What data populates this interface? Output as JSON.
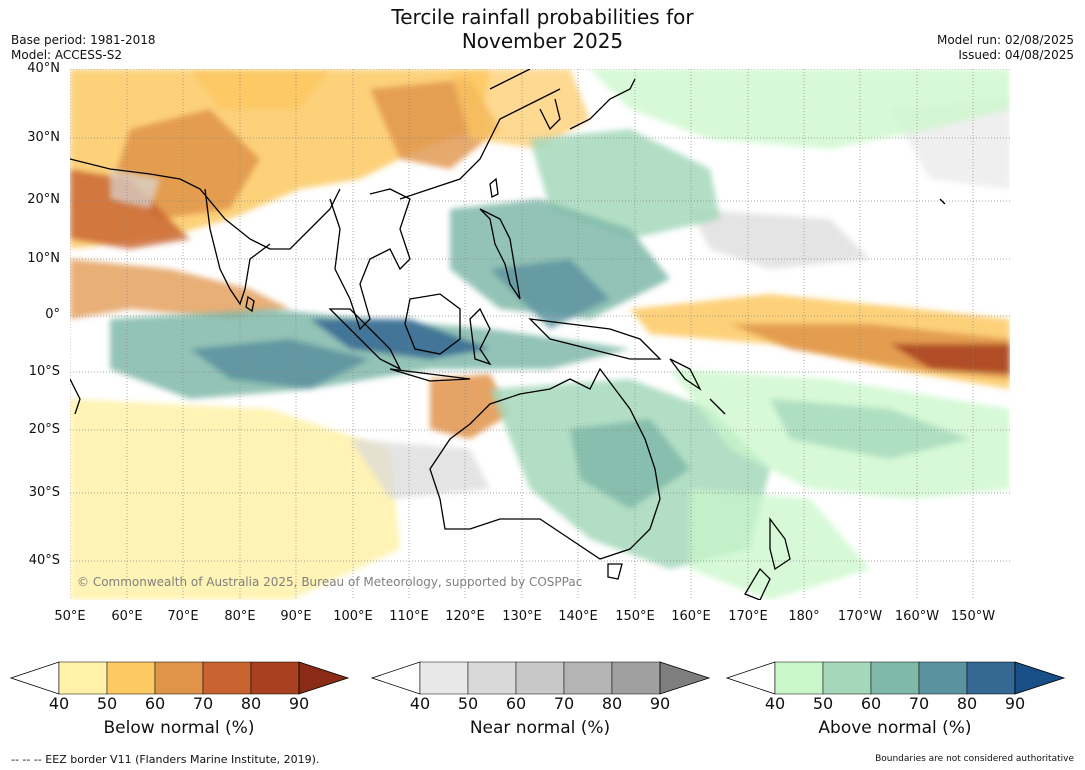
{
  "title": {
    "line1": "Tercile rainfall probabilities for",
    "line2": "November 2025"
  },
  "meta_left": {
    "base_period": "Base period: 1981-2018",
    "model": "Model: ACCESS-S2"
  },
  "meta_right": {
    "model_run": "Model run: 02/08/2025",
    "issued": "Issued: 04/08/2025"
  },
  "map": {
    "lat_labels": [
      "40°N",
      "30°N",
      "20°N",
      "10°N",
      "0°",
      "10°S",
      "20°S",
      "30°S",
      "40°S"
    ],
    "lon_labels": [
      "50°E",
      "60°E",
      "70°E",
      "80°E",
      "90°E",
      "100°E",
      "110°E",
      "120°E",
      "130°E",
      "140°E",
      "150°E",
      "160°E",
      "170°E",
      "180°",
      "170°W",
      "160°W",
      "150°W"
    ],
    "copyright": "© Commonwealth of Australia 2025, Bureau of Meteorology, supported by COSPPac",
    "grid": true
  },
  "colorbars": [
    {
      "label": "Below normal (%)",
      "ticks": [
        "40",
        "50",
        "60",
        "70",
        "80",
        "90"
      ],
      "colors": [
        "#fff1a8",
        "#fdc963",
        "#e0944a",
        "#c8622e",
        "#a9401f",
        "#8b2a17"
      ]
    },
    {
      "label": "Near normal (%)",
      "ticks": [
        "40",
        "50",
        "60",
        "70",
        "80",
        "90"
      ],
      "colors": [
        "#e8e8e8",
        "#d9d9d9",
        "#c8c8c8",
        "#b4b4b4",
        "#a0a0a0",
        "#7e7e7e"
      ]
    },
    {
      "label": "Above normal (%)",
      "ticks": [
        "40",
        "50",
        "60",
        "70",
        "80",
        "90"
      ],
      "colors": [
        "#c9f7c9",
        "#a5d8bb",
        "#80b8a9",
        "#5b92a0",
        "#356893",
        "#174f86"
      ]
    }
  ],
  "footer": {
    "eez": "--  --  -- EEZ border V11 (Flanders Marine Institute, 2019).",
    "disclaimer": "Boundaries are not considered authoritative"
  }
}
